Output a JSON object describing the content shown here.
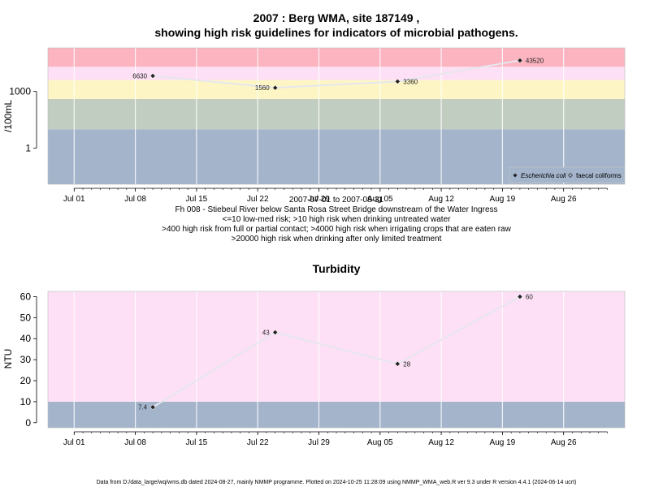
{
  "title_line1": "2007 : Berg WMA, site 187149 ,",
  "title_line2": "showing high risk guidelines for indicators of microbial pathogens.",
  "footer": "Data from D:/data_large/wq/wms.db dated 2024-08-27, mainly NMMP programme. Plotted on 2024-10-25 11:28:09 using NMMP_WMA_web.R ver 9.3 under R version 4.4.1 (2024-06-14 ucrt)",
  "colors": {
    "band_red": "#fcb4c0",
    "band_pink": "#fde0f5",
    "band_yellow": "#fdf6c4",
    "band_green": "#c1cdc1",
    "band_blue": "#a3b4cb",
    "grid": "#ffffff",
    "line": "#e6e6ee",
    "point": "#222222"
  },
  "x_axis": {
    "ticks": [
      "Jul 01",
      "Jul 08",
      "Jul 15",
      "Jul 22",
      "Jul 29",
      "Aug 05",
      "Aug 12",
      "Aug 19",
      "Aug 26"
    ],
    "tick_dates": [
      "2007-07-01",
      "2007-07-08",
      "2007-07-15",
      "2007-07-22",
      "2007-07-29",
      "2007-08-05",
      "2007-08-12",
      "2007-08-19",
      "2007-08-26"
    ],
    "range": [
      "2007-06-28",
      "2007-09-02"
    ]
  },
  "caption": [
    "2007-07-01 to 2007-08-31",
    "Fh 008 - Stiebeul River below Santa Rosa Street Bridge downstream of the Water Ingress",
    "<=10 low-med risk; >10 high risk when drinking untreated water",
    ">400 high risk from full or partial contact; >4000 high risk when irrigating crops that are eaten raw",
    ">20000 high risk when drinking after only limited treatment"
  ],
  "chart_data": [
    {
      "type": "line",
      "ylabel": "/100mL",
      "yscale": "log",
      "yticks": [
        "1",
        "1000"
      ],
      "ylim": [
        0.0125,
        200000
      ],
      "bands": [
        {
          "from": 0.0125,
          "to": 10,
          "color": "band_blue"
        },
        {
          "from": 10,
          "to": 400,
          "color": "band_green"
        },
        {
          "from": 400,
          "to": 4000,
          "color": "band_yellow"
        },
        {
          "from": 4000,
          "to": 20000,
          "color": "band_pink"
        },
        {
          "from": 20000,
          "to": 200000,
          "color": "band_red"
        }
      ],
      "legend": {
        "position": "bottom-right",
        "entries": [
          "Escherichia coli",
          "faecal coliforms"
        ]
      },
      "series": [
        {
          "name": "Escherichia coli",
          "x": [
            "2007-07-10",
            "2007-07-24",
            "2007-08-07",
            "2007-08-21"
          ],
          "values": [
            6630,
            1560,
            3360,
            43520
          ],
          "labels": [
            "6630",
            "1560",
            "3360",
            "43520"
          ]
        }
      ]
    },
    {
      "type": "line",
      "title": "Turbidity",
      "ylabel": "NTU",
      "yticks": [
        "0",
        "10",
        "20",
        "30",
        "40",
        "50",
        "60"
      ],
      "ylim": [
        -2.4,
        62.5
      ],
      "bands": [
        {
          "from": -2.4,
          "to": 10,
          "color": "band_blue"
        },
        {
          "from": 10,
          "to": 62.5,
          "color": "band_pink"
        }
      ],
      "series": [
        {
          "x": [
            "2007-07-10",
            "2007-07-24",
            "2007-08-07",
            "2007-08-21"
          ],
          "values": [
            7.4,
            43,
            28,
            60
          ],
          "labels": [
            "7.4",
            "43",
            "28",
            "60"
          ]
        }
      ]
    }
  ]
}
